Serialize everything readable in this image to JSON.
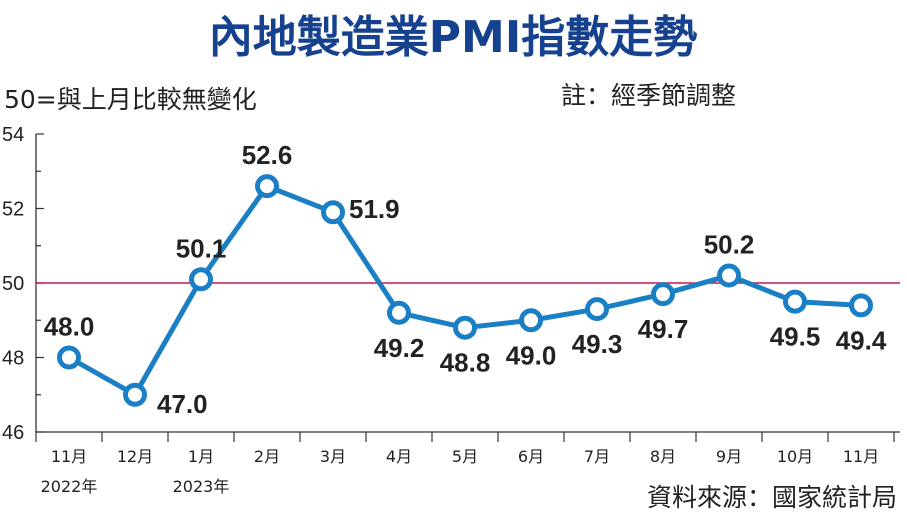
{
  "chart_data": {
    "type": "line",
    "title": "內地製造業PMI指數走勢",
    "subtitle": "50=與上月比較無變化",
    "note": "註：經季節調整",
    "source": "資料來源：國家統計局",
    "categories": [
      "11月",
      "12月",
      "1月",
      "2月",
      "3月",
      "4月",
      "5月",
      "6月",
      "7月",
      "8月",
      "9月",
      "10月",
      "11月"
    ],
    "year_labels": [
      "2022年",
      "",
      "2023年",
      "",
      "",
      "",
      "",
      "",
      "",
      "",
      "",
      "",
      ""
    ],
    "values": [
      48.0,
      47.0,
      50.1,
      52.6,
      51.9,
      49.2,
      48.8,
      49.0,
      49.3,
      49.7,
      50.2,
      49.5,
      49.4
    ],
    "value_labels": [
      "48.0",
      "47.0",
      "50.1",
      "52.6",
      "51.9",
      "49.2",
      "48.8",
      "49.0",
      "49.3",
      "49.7",
      "50.2",
      "49.5",
      "49.4"
    ],
    "ylim": [
      46,
      54
    ],
    "yticks": [
      "46",
      "48",
      "50",
      "52",
      "54"
    ],
    "reference_line": 50,
    "colors": {
      "line": "#1a7fc4",
      "reference": "#c8194b",
      "title": "#16418f"
    }
  }
}
